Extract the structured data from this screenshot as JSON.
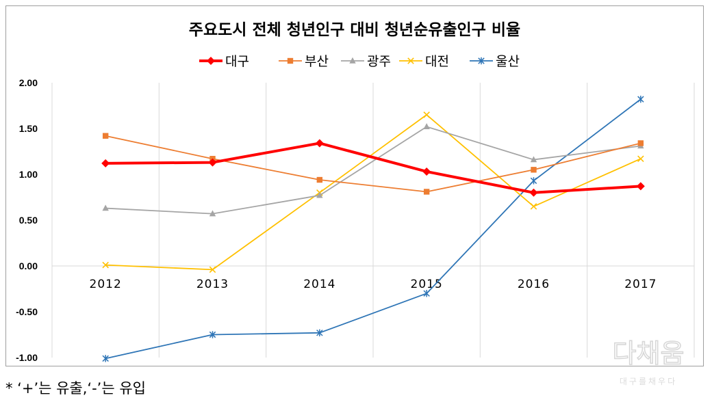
{
  "chart_data": {
    "type": "line",
    "title": "주요도시 전체 청년인구 대비 청년순유출인구 비율",
    "categories": [
      "2012",
      "2013",
      "2014",
      "2015",
      "2016",
      "2017"
    ],
    "ylim": [
      -1.0,
      2.0
    ],
    "yticks": [
      "2.00",
      "1.50",
      "1.00",
      "0.50",
      "0.00",
      "-0.50",
      "-1.00"
    ],
    "ytick_values": [
      2.0,
      1.5,
      1.0,
      0.5,
      0.0,
      -0.5,
      -1.0
    ],
    "grid": "vertical",
    "legend": "top",
    "series": [
      {
        "name": "대구",
        "values": [
          1.12,
          1.13,
          1.34,
          1.03,
          0.8,
          0.87
        ],
        "color": "#ff0000",
        "marker": "diamond"
      },
      {
        "name": "부산",
        "values": [
          1.42,
          1.17,
          0.94,
          0.81,
          1.05,
          1.34
        ],
        "color": "#ed7d31",
        "marker": "square"
      },
      {
        "name": "광주",
        "values": [
          0.63,
          0.57,
          0.77,
          1.52,
          1.16,
          1.31
        ],
        "color": "#a5a5a5",
        "marker": "triangle"
      },
      {
        "name": "대전",
        "values": [
          0.01,
          -0.04,
          0.8,
          1.65,
          0.65,
          1.17
        ],
        "color": "#ffc000",
        "marker": "x"
      },
      {
        "name": "울산",
        "values": [
          -1.01,
          -0.75,
          -0.73,
          -0.3,
          0.93,
          1.82
        ],
        "color": "#2e75b6",
        "marker": "star"
      }
    ]
  },
  "footnote": "*  ‘+’는 유출,‘-’는 유입",
  "watermark": {
    "main": "다채움",
    "sub": "대구를채우다"
  }
}
